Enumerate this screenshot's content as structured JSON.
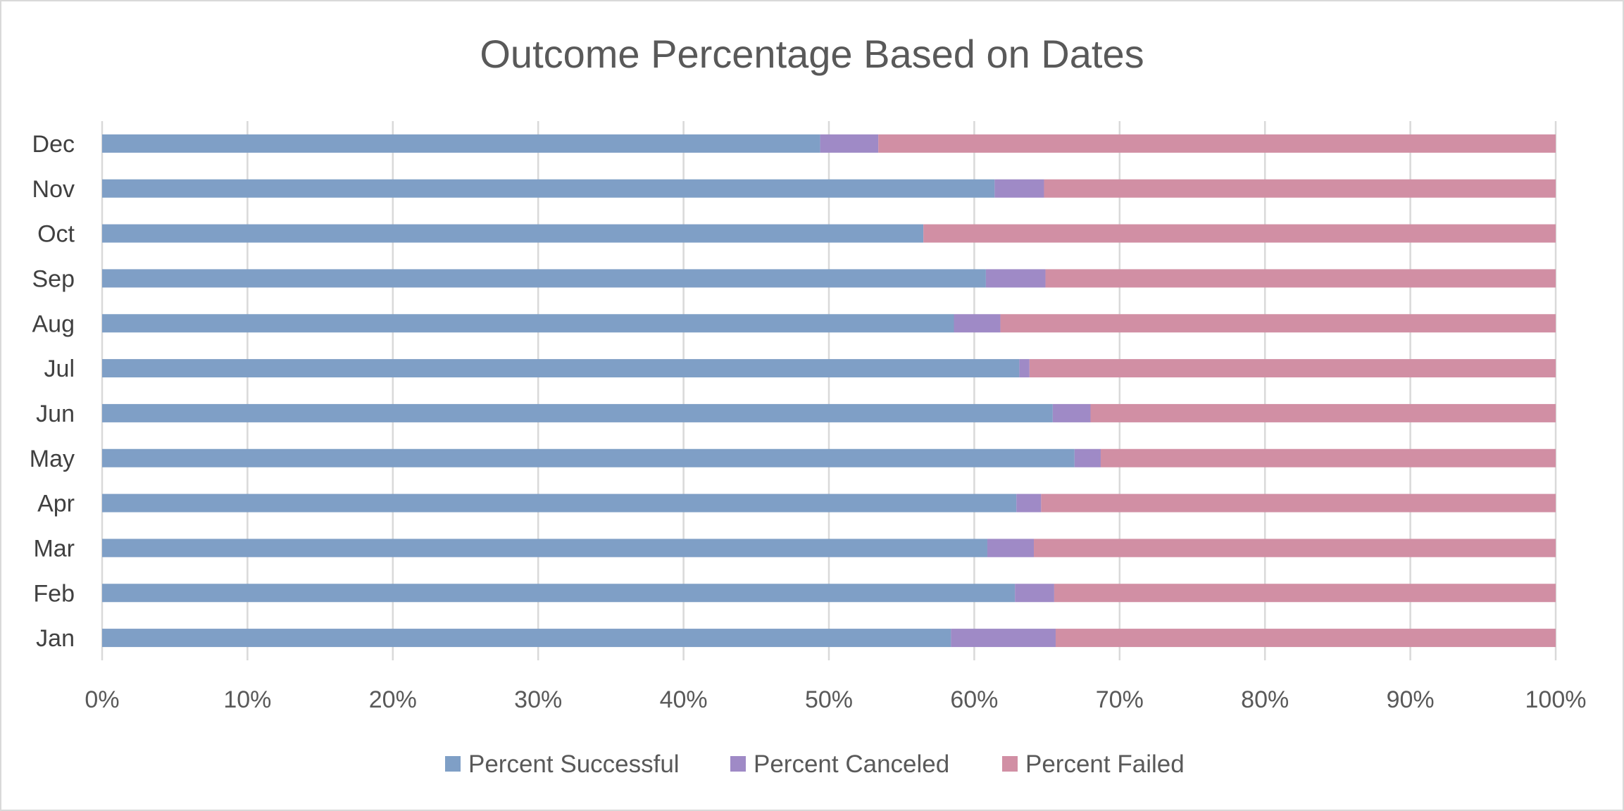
{
  "chart_data": {
    "type": "bar",
    "orientation": "horizontal",
    "stacking": "percent",
    "title": "Outcome Percentage Based on Dates",
    "categories": [
      "Jan",
      "Feb",
      "Mar",
      "Apr",
      "May",
      "Jun",
      "Jul",
      "Aug",
      "Sep",
      "Oct",
      "Nov",
      "Dec"
    ],
    "series": [
      {
        "name": "Percent Successful",
        "color": "#7f9fc6",
        "values": [
          58.4,
          62.8,
          60.9,
          62.9,
          66.9,
          65.4,
          63.1,
          58.6,
          60.8,
          56.5,
          61.4,
          49.4
        ]
      },
      {
        "name": "Percent Canceled",
        "color": "#9f8ac6",
        "values": [
          7.2,
          2.7,
          3.2,
          1.7,
          1.8,
          2.6,
          0.7,
          3.2,
          4.1,
          0.0,
          3.4,
          4.0
        ]
      },
      {
        "name": "Percent Failed",
        "color": "#d18fa4",
        "values": [
          34.4,
          34.5,
          35.9,
          35.4,
          31.3,
          32.0,
          36.2,
          38.2,
          35.1,
          43.5,
          35.2,
          46.6
        ]
      }
    ],
    "xlim": [
      0,
      100
    ],
    "x_ticks": [
      "0%",
      "10%",
      "20%",
      "30%",
      "40%",
      "50%",
      "60%",
      "70%",
      "80%",
      "90%",
      "100%"
    ],
    "grid": true,
    "legend_position": "bottom"
  }
}
